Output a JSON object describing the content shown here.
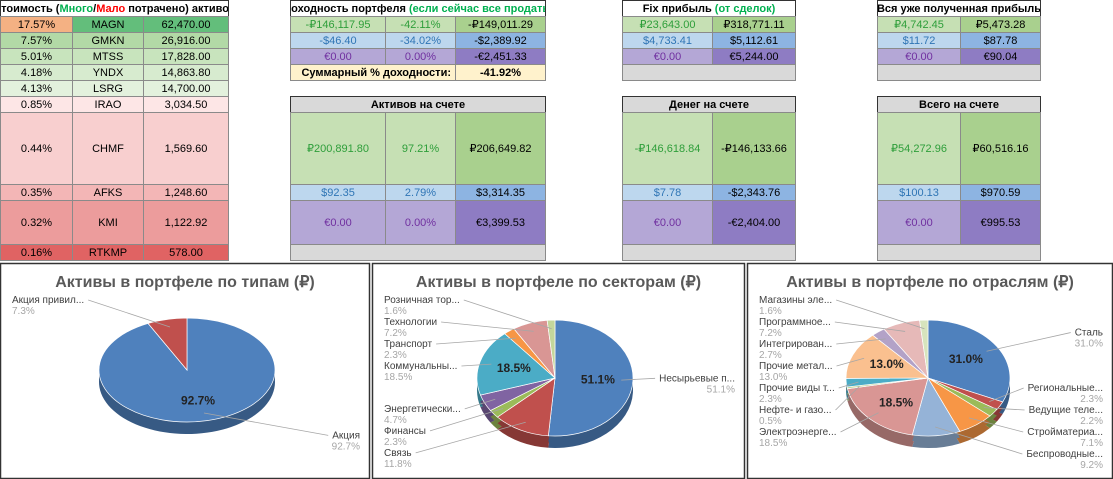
{
  "portfolio": {
    "header": [
      "Стоимость (",
      "Много",
      "/",
      "Мало",
      " потрачено) активов"
    ],
    "rows": [
      [
        "17.57%",
        "MAGN",
        "62,470.00"
      ],
      [
        "7.57%",
        "GMKN",
        "26,916.00"
      ],
      [
        "5.01%",
        "MTSS",
        "17,828.00"
      ],
      [
        "4.18%",
        "YNDX",
        "14,863.80"
      ],
      [
        "4.13%",
        "LSRG",
        "14,700.00"
      ],
      [
        "0.85%",
        "IRAO",
        "3,034.50"
      ],
      [
        "0.44%",
        "CHMF",
        "1,569.60"
      ],
      [
        "0.35%",
        "AFKS",
        "1,248.60"
      ],
      [
        "0.32%",
        "KMI",
        "1,122.92"
      ],
      [
        "0.16%",
        "RTKMP",
        "578.00"
      ]
    ]
  },
  "returns": {
    "header": [
      "Доходность портфеля ",
      "(если сейчас все продать)"
    ],
    "rows": [
      [
        "-₽146,117.95",
        "-42.11%",
        "-₽149,011.29"
      ],
      [
        "-$46.40",
        "-34.02%",
        "-$2,389.92"
      ],
      [
        "€0.00",
        "0.00%",
        "-€2,451.33"
      ]
    ],
    "total_label": "Суммарный % доходности:",
    "total_value": "-41.92%",
    "assets_header": "Активов на счете",
    "assets_rows": [
      [
        "₽200,891.80",
        "97.21%",
        "₽206,649.82"
      ],
      [
        "$92.35",
        "2.79%",
        "$3,314.35"
      ],
      [
        "€0.00",
        "0.00%",
        "€3,399.53"
      ]
    ]
  },
  "fix_profit": {
    "header": [
      "Fix прибыль ",
      "(от сделок)"
    ],
    "rows": [
      [
        "₽23,643.00",
        "₽318,771.11"
      ],
      [
        "$4,733.41",
        "$5,112.61"
      ],
      [
        "€0.00",
        "€5,244.00"
      ]
    ],
    "cash_header": "Денег на счете",
    "cash_rows": [
      [
        "-₽146,618.84",
        "-₽146,133.66"
      ],
      [
        "$7.78",
        "-$2,343.76"
      ],
      [
        "€0.00",
        "-€2,404.00"
      ]
    ]
  },
  "received_profit": {
    "header": "Вся уже полученная прибыль",
    "rows": [
      [
        "₽4,742.45",
        "₽5,473.28"
      ],
      [
        "$11.72",
        "$87.78"
      ],
      [
        "€0.00",
        "€90.04"
      ]
    ],
    "total_header": "Всего на счете",
    "total_rows": [
      [
        "₽54,272.96",
        "₽60,516.16"
      ],
      [
        "$100.13",
        "$970.59"
      ],
      [
        "€0.00",
        "€995.53"
      ]
    ]
  },
  "charts": [
    {
      "type": "pie",
      "title": "Активы в портфеле по типам (₽)",
      "categories": [
        "Акция",
        "Акция привил..."
      ],
      "values": [
        92.7,
        7.3
      ],
      "value_labels": [
        "92.7%",
        "7.3%"
      ],
      "colors": [
        "#4f81bd",
        "#c0504d"
      ]
    },
    {
      "type": "pie",
      "title": "Активы в портфеле по секторам (₽)",
      "categories": [
        "Несырьевые п...",
        "Связь",
        "Финансы",
        "Энергетически...",
        "Коммунальны...",
        "Транспорт",
        "Технологии",
        "Розничная тор..."
      ],
      "values": [
        51.1,
        11.8,
        2.3,
        4.7,
        18.5,
        2.3,
        7.2,
        1.6
      ],
      "value_labels": [
        "51.1%",
        "11.8%",
        "2.3%",
        "4.7%",
        "18.5%",
        "2.3%",
        "7.2%",
        "1.6%"
      ],
      "colors": [
        "#4f81bd",
        "#c0504d",
        "#9bbb59",
        "#8064a2",
        "#4bacc6",
        "#f79646",
        "#d99694",
        "#c3d69b"
      ]
    },
    {
      "type": "pie",
      "title": "Активы в портфеле по отраслям (₽)",
      "categories": [
        "Сталь",
        "Региональные...",
        "Ведущие теле...",
        "Стройматериа...",
        "Беспроводные...",
        "Электроэнерге...",
        "Нефте- и газо...",
        "Прочие виды т...",
        "Прочие метал...",
        "Интегрирован...",
        "Программное...",
        "Магазины эле..."
      ],
      "values": [
        31.0,
        2.3,
        2.2,
        7.1,
        9.2,
        18.5,
        0.5,
        2.3,
        13.0,
        2.7,
        7.2,
        1.6
      ],
      "value_labels": [
        "31.0%",
        "2.3%",
        "2.2%",
        "7.1%",
        "9.2%",
        "18.5%",
        "0.5%",
        "2.3%",
        "13.0%",
        "2.7%",
        "7.2%",
        "1.6%"
      ],
      "colors": [
        "#4f81bd",
        "#c0504d",
        "#9bbb59",
        "#f79646",
        "#95b3d7",
        "#d99694",
        "#c3d69b",
        "#4bacc6",
        "#fac08f",
        "#b3a2c7",
        "#e6b9b8",
        "#d7e4bd"
      ]
    }
  ]
}
